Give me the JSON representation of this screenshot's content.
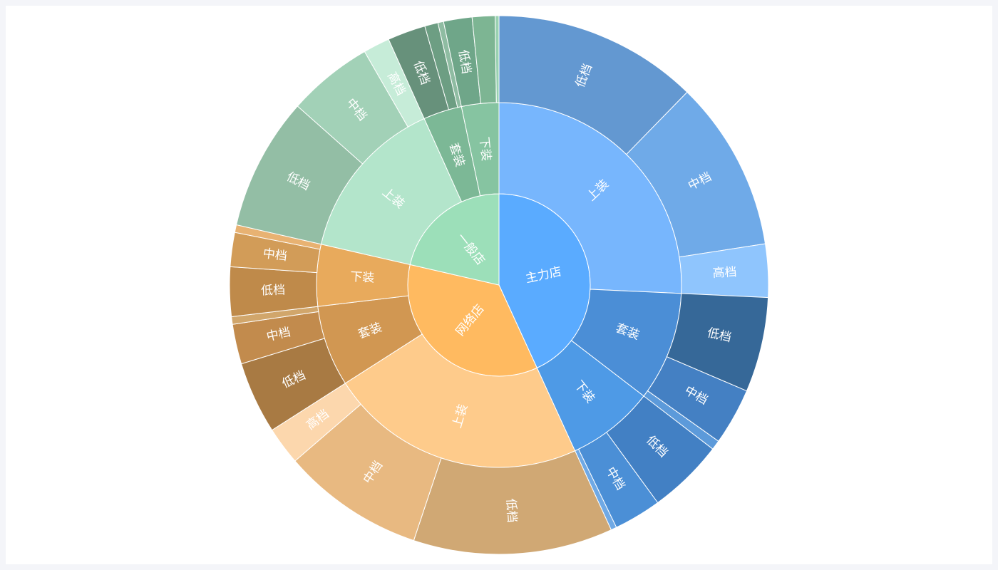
{
  "chart_data": {
    "type": "sunburst",
    "title": "",
    "children": [
      {
        "name": "主力店",
        "color": "#5aabff",
        "children": [
          {
            "name": "上装",
            "color": "#77b6fd",
            "children": [
              {
                "name": "低档",
                "value": 108,
                "color": "#6398d1"
              },
              {
                "name": "中档",
                "value": 90,
                "color": "#6faae8"
              },
              {
                "name": "高档",
                "value": 28,
                "color": "#8fc5fd"
              }
            ]
          },
          {
            "name": "套装",
            "color": "#4b8ed6",
            "children": [
              {
                "name": "低档",
                "value": 50,
                "color": "#366898"
              },
              {
                "name": "中档",
                "value": 30,
                "color": "#4480c3"
              },
              {
                "name": "",
                "value": 5,
                "color": "#5c9ada"
              }
            ]
          },
          {
            "name": "下装",
            "color": "#4e9ae6",
            "children": [
              {
                "name": "低档",
                "value": 40,
                "color": "#4280c4"
              },
              {
                "name": "中档",
                "value": 25,
                "color": "#4b8fd6"
              },
              {
                "name": "",
                "value": 3,
                "color": "#6fa9e5"
              }
            ]
          }
        ]
      },
      {
        "name": "网络店",
        "color": "#ffba60",
        "children": [
          {
            "name": "上装",
            "color": "#fecb8b",
            "children": [
              {
                "name": "低档",
                "value": 105,
                "color": "#d0a874"
              },
              {
                "name": "中档",
                "value": 75,
                "color": "#e8b981"
              },
              {
                "name": "高档",
                "value": 20,
                "color": "#fcd7ad"
              }
            ]
          },
          {
            "name": "套装",
            "color": "#d19752",
            "children": [
              {
                "name": "低档",
                "value": 38,
                "color": "#a87a43"
              },
              {
                "name": "中档",
                "value": 21,
                "color": "#c28b4d"
              },
              {
                "name": "",
                "value": 4,
                "color": "#d1a66b"
              }
            ]
          },
          {
            "name": "下装",
            "color": "#e8aa5c",
            "children": [
              {
                "name": "低档",
                "value": 26,
                "color": "#bf8a4a"
              },
              {
                "name": "中档",
                "value": 18,
                "color": "#d29c58"
              },
              {
                "name": "",
                "value": 4,
                "color": "#e8b272"
              }
            ]
          }
        ]
      },
      {
        "name": "一般店",
        "color": "#9cdfb9",
        "children": [
          {
            "name": "上装",
            "color": "#b3e5cb",
            "children": [
              {
                "name": "低档",
                "value": 70,
                "color": "#93bea5"
              },
              {
                "name": "中档",
                "value": 45,
                "color": "#a2d1b7"
              },
              {
                "name": "高档",
                "value": 14,
                "color": "#c6ecd8"
              }
            ]
          },
          {
            "name": "套装",
            "color": "#7cb896",
            "children": [
              {
                "name": "低档",
                "value": 20,
                "color": "#67917b"
              },
              {
                "name": "",
                "value": 7,
                "color": "#6d9e83"
              },
              {
                "name": "",
                "value": 3,
                "color": "#8fbca2"
              }
            ]
          },
          {
            "name": "下装",
            "color": "#86c4a1",
            "children": [
              {
                "name": "低档",
                "value": 15,
                "color": "#6fa689"
              },
              {
                "name": "",
                "value": 12,
                "color": "#7db593"
              },
              {
                "name": "",
                "value": 2,
                "color": "#99d1b1"
              }
            ]
          }
        ]
      }
    ]
  }
}
